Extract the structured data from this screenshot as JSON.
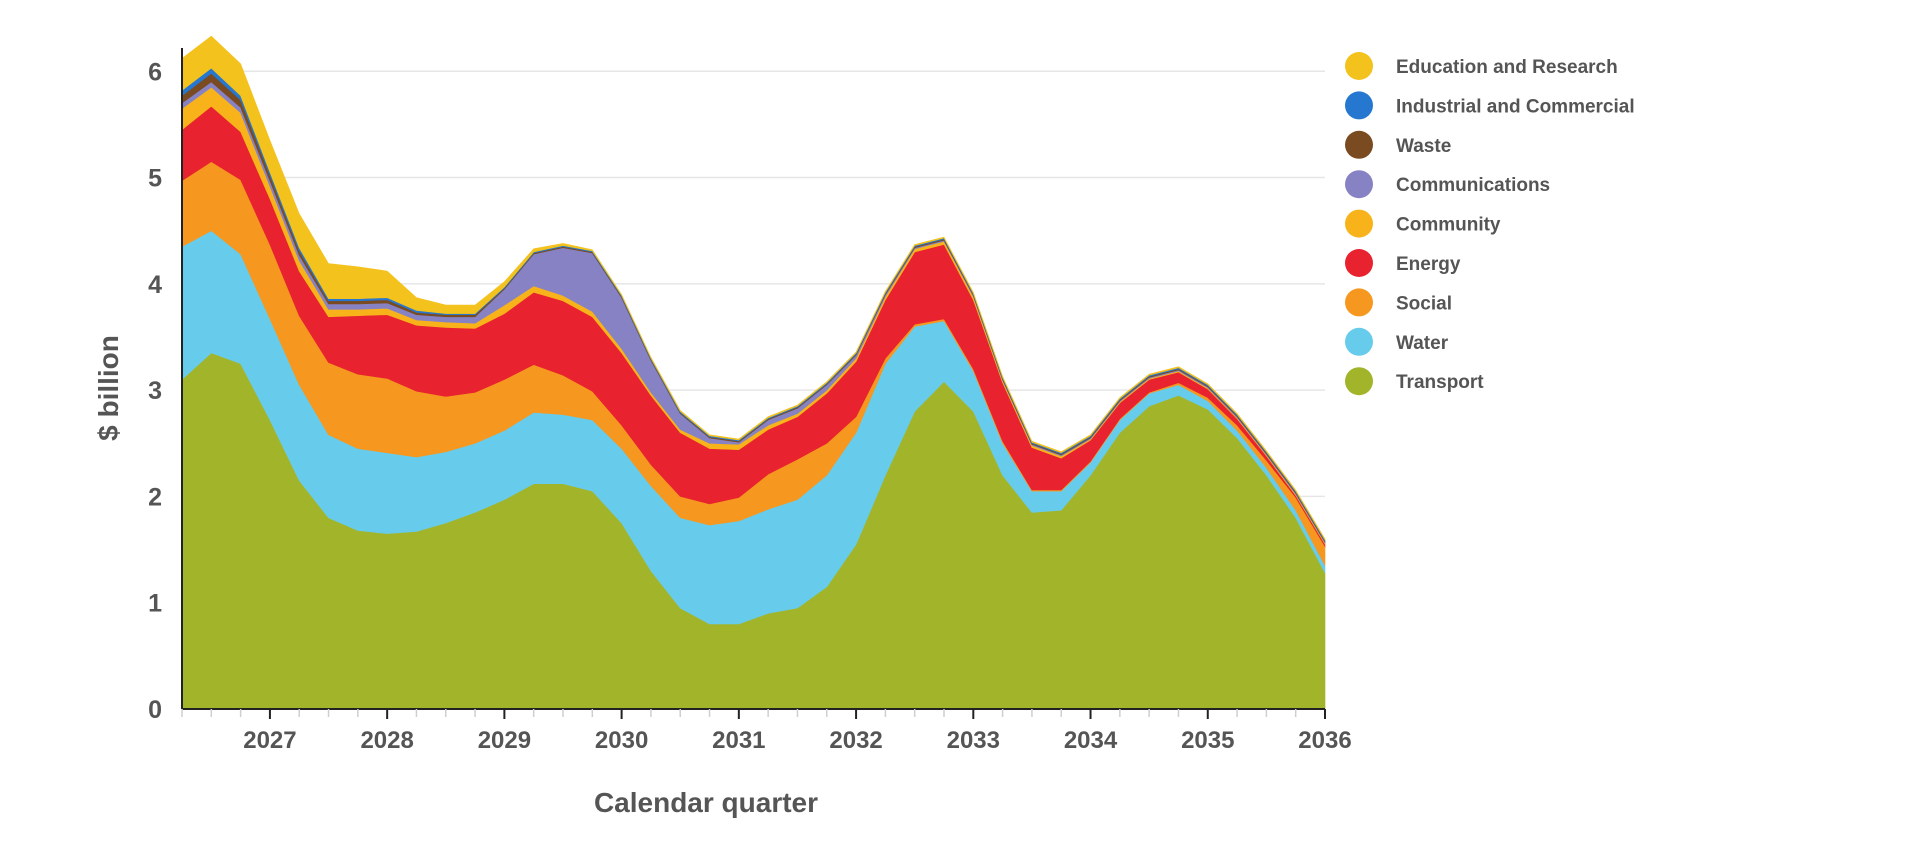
{
  "chart_data": {
    "type": "area",
    "stacked": true,
    "title": "",
    "xlabel": "Calendar quarter",
    "ylabel": "$ billion",
    "ylim": [
      0,
      6.2
    ],
    "yticks": [
      0,
      1,
      2,
      3,
      4,
      5,
      6
    ],
    "x": [
      "2026 Q2",
      "2026 Q3",
      "2026 Q4",
      "2027 Q1",
      "2027 Q2",
      "2027 Q3",
      "2027 Q4",
      "2028 Q1",
      "2028 Q2",
      "2028 Q3",
      "2028 Q4",
      "2029 Q1",
      "2029 Q2",
      "2029 Q3",
      "2029 Q4",
      "2030 Q1",
      "2030 Q2",
      "2030 Q3",
      "2030 Q4",
      "2031 Q1",
      "2031 Q2",
      "2031 Q3",
      "2031 Q4",
      "2032 Q1",
      "2032 Q2",
      "2032 Q3",
      "2032 Q4",
      "2033 Q1",
      "2033 Q2",
      "2033 Q3",
      "2033 Q4",
      "2034 Q1",
      "2034 Q2",
      "2034 Q3",
      "2034 Q4",
      "2035 Q1",
      "2035 Q2",
      "2035 Q3",
      "2035 Q4",
      "2036 Q1"
    ],
    "xtick_labels": [
      "2027",
      "2028",
      "2029",
      "2030",
      "2031",
      "2032",
      "2033",
      "2034",
      "2035",
      "2036"
    ],
    "legend_position": "right",
    "series": [
      {
        "name": "Transport",
        "color": "#a2b52a",
        "values": [
          3.1,
          3.35,
          3.25,
          2.72,
          2.15,
          1.8,
          1.68,
          1.65,
          1.67,
          1.75,
          1.85,
          1.97,
          2.12,
          2.12,
          2.05,
          1.75,
          1.3,
          0.95,
          0.8,
          0.8,
          0.9,
          0.95,
          1.15,
          1.55,
          2.2,
          2.8,
          3.08,
          2.8,
          2.2,
          1.85,
          1.87,
          2.2,
          2.6,
          2.85,
          2.95,
          2.82,
          2.55,
          2.2,
          1.8,
          1.28
        ]
      },
      {
        "name": "Water",
        "color": "#67cceb",
        "values": [
          1.25,
          1.15,
          1.03,
          0.95,
          0.9,
          0.78,
          0.77,
          0.76,
          0.7,
          0.67,
          0.65,
          0.65,
          0.67,
          0.65,
          0.67,
          0.7,
          0.8,
          0.85,
          0.93,
          0.97,
          0.98,
          1.02,
          1.05,
          1.05,
          1.05,
          0.8,
          0.57,
          0.38,
          0.3,
          0.2,
          0.18,
          0.12,
          0.12,
          0.12,
          0.1,
          0.08,
          0.07,
          0.07,
          0.07,
          0.07
        ]
      },
      {
        "name": "Social",
        "color": "#f6971f",
        "values": [
          0.62,
          0.65,
          0.7,
          0.7,
          0.65,
          0.68,
          0.7,
          0.7,
          0.62,
          0.52,
          0.48,
          0.48,
          0.45,
          0.37,
          0.27,
          0.22,
          0.2,
          0.2,
          0.2,
          0.22,
          0.33,
          0.38,
          0.3,
          0.15,
          0.05,
          0.02,
          0.02,
          0.02,
          0.02,
          0.01,
          0.01,
          0.01,
          0.01,
          0.01,
          0.02,
          0.03,
          0.05,
          0.07,
          0.12,
          0.18
        ]
      },
      {
        "name": "Energy",
        "color": "#e8222e",
        "values": [
          0.48,
          0.52,
          0.45,
          0.43,
          0.42,
          0.43,
          0.55,
          0.6,
          0.62,
          0.65,
          0.6,
          0.62,
          0.68,
          0.7,
          0.7,
          0.68,
          0.65,
          0.6,
          0.52,
          0.45,
          0.42,
          0.4,
          0.47,
          0.52,
          0.55,
          0.68,
          0.7,
          0.65,
          0.55,
          0.4,
          0.3,
          0.2,
          0.15,
          0.12,
          0.1,
          0.08,
          0.06,
          0.04,
          0.02,
          0.02
        ]
      },
      {
        "name": "Community",
        "color": "#f8b31a",
        "values": [
          0.2,
          0.18,
          0.18,
          0.12,
          0.1,
          0.07,
          0.06,
          0.06,
          0.05,
          0.05,
          0.05,
          0.08,
          0.06,
          0.05,
          0.05,
          0.04,
          0.03,
          0.03,
          0.05,
          0.05,
          0.04,
          0.03,
          0.03,
          0.03,
          0.03,
          0.03,
          0.03,
          0.03,
          0.02,
          0.02,
          0.02,
          0.01,
          0.01,
          0.01,
          0.01,
          0.01,
          0.01,
          0.01,
          0.01,
          0.01
        ]
      },
      {
        "name": "Communications",
        "color": "#8782c4",
        "values": [
          0.05,
          0.05,
          0.05,
          0.05,
          0.05,
          0.05,
          0.05,
          0.05,
          0.05,
          0.05,
          0.06,
          0.15,
          0.3,
          0.45,
          0.55,
          0.48,
          0.3,
          0.15,
          0.05,
          0.02,
          0.05,
          0.05,
          0.05,
          0.03,
          0.02,
          0.01,
          0.01,
          0.01,
          0.01,
          0.01,
          0.01,
          0.01,
          0.01,
          0.01,
          0.01,
          0.01,
          0.01,
          0.01,
          0.01,
          0.01
        ]
      },
      {
        "name": "Waste",
        "color": "#7a4a20",
        "values": [
          0.07,
          0.08,
          0.07,
          0.05,
          0.04,
          0.03,
          0.03,
          0.03,
          0.02,
          0.02,
          0.02,
          0.01,
          0.01,
          0.01,
          0.01,
          0.01,
          0.01,
          0.01,
          0.01,
          0.01,
          0.01,
          0.01,
          0.01,
          0.01,
          0.01,
          0.01,
          0.01,
          0.01,
          0.01,
          0.01,
          0.01,
          0.01,
          0.01,
          0.01,
          0.01,
          0.01,
          0.01,
          0.01,
          0.01,
          0.01
        ]
      },
      {
        "name": "Industrial and Commercial",
        "color": "#2677d0",
        "values": [
          0.05,
          0.05,
          0.04,
          0.03,
          0.03,
          0.02,
          0.02,
          0.02,
          0.02,
          0.01,
          0.01,
          0.01,
          0.01,
          0.01,
          0.01,
          0.01,
          0.01,
          0.01,
          0.01,
          0.01,
          0.01,
          0.01,
          0.01,
          0.01,
          0.01,
          0.01,
          0.01,
          0.01,
          0.01,
          0.01,
          0.01,
          0.01,
          0.01,
          0.01,
          0.01,
          0.01,
          0.01,
          0.01,
          0.01,
          0.01
        ]
      },
      {
        "name": "Education and Research",
        "color": "#f3c21c",
        "values": [
          0.3,
          0.3,
          0.3,
          0.3,
          0.32,
          0.33,
          0.3,
          0.25,
          0.12,
          0.08,
          0.08,
          0.05,
          0.03,
          0.02,
          0.01,
          0.01,
          0.01,
          0.01,
          0.01,
          0.01,
          0.01,
          0.01,
          0.01,
          0.01,
          0.01,
          0.01,
          0.01,
          0.01,
          0.01,
          0.01,
          0.01,
          0.01,
          0.01,
          0.01,
          0.01,
          0.01,
          0.01,
          0.01,
          0.01,
          0.01
        ]
      }
    ],
    "legend_order": [
      "Education and Research",
      "Industrial and Commercial",
      "Waste",
      "Communications",
      "Community",
      "Energy",
      "Social",
      "Water",
      "Transport"
    ]
  }
}
